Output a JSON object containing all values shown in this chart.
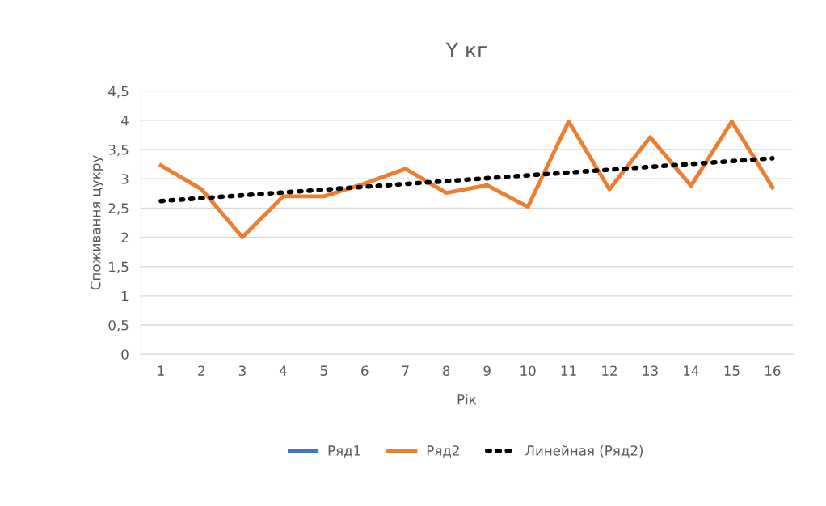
{
  "chart_data": {
    "type": "line",
    "title": "Y кг",
    "xlabel": "Рік",
    "ylabel": "Споживання цукру",
    "x": [
      1,
      2,
      3,
      4,
      5,
      6,
      7,
      8,
      9,
      10,
      11,
      12,
      13,
      14,
      15,
      16
    ],
    "xlim": [
      0.5,
      16.5
    ],
    "xticks": [
      1,
      2,
      3,
      4,
      5,
      6,
      7,
      8,
      9,
      10,
      11,
      12,
      13,
      14,
      15,
      16
    ],
    "ylim": [
      0,
      4.5
    ],
    "yticks": [
      0,
      {
        "value": 0.5,
        "label": "0,5"
      },
      1,
      {
        "value": 1.5,
        "label": "1,5"
      },
      2,
      {
        "value": 2.5,
        "label": "2,5"
      },
      3,
      {
        "value": 3.5,
        "label": "3,5"
      },
      4,
      {
        "value": 4.5,
        "label": "4,5"
      }
    ],
    "series": [
      {
        "name": "Ряд1",
        "color": "#4472c4",
        "values": [
          null,
          null,
          null,
          null,
          null,
          null,
          null,
          null,
          null,
          null,
          null,
          null,
          null,
          null,
          null,
          null
        ]
      },
      {
        "name": "Ряд2",
        "color": "#ed7d31",
        "values": [
          3.23,
          2.82,
          2.0,
          2.7,
          2.7,
          2.92,
          3.17,
          2.76,
          2.89,
          2.52,
          3.98,
          2.82,
          3.71,
          2.88,
          3.98,
          2.85
        ]
      },
      {
        "name": "Линейная (Ряд2)",
        "color": "#000000",
        "line_style": "dotted",
        "x": [
          1,
          16
        ],
        "values": [
          2.62,
          3.35
        ]
      }
    ],
    "grid": "y",
    "legend": "bottom",
    "marker": "none"
  }
}
